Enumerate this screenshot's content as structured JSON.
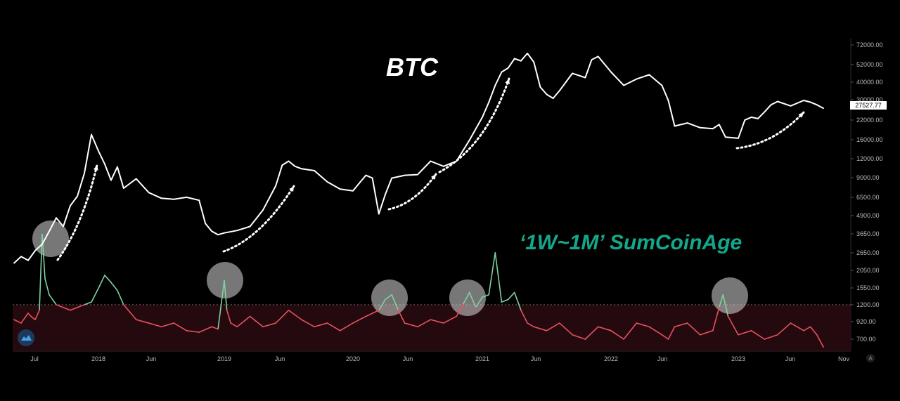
{
  "chart_data": {
    "type": "line",
    "title": "BTC",
    "subtitle": "‘1W~1M’ SumCoinAge",
    "price_label": "27527.77",
    "threshold": 1200,
    "x_ticks": [
      "Jul",
      "2018",
      "Jun",
      "2019",
      "Jun",
      "2020",
      "Jun",
      "2021",
      "Jun",
      "2022",
      "Jun",
      "2023",
      "Jun",
      "Nov"
    ],
    "y_ticks_top": [
      "72000.00",
      "52000.00",
      "40000.00",
      "30000.00",
      "22000.00",
      "16000.00",
      "12000.00",
      "9000.00",
      "6500.00",
      "4900.00",
      "3650.00",
      "2650.00",
      "2050.00",
      "1550.00",
      "1200.00",
      "920.00",
      "700.00"
    ],
    "corner_label": "A",
    "colors": {
      "price": "#ffffff",
      "above": "#7fd1a0",
      "below": "#e8505f",
      "subtitle": "#14a88a",
      "arrow": "#ffffff",
      "circle": "#d9d9d9"
    },
    "series": [
      {
        "name": "BTC",
        "x": [
          2017.4,
          2017.45,
          2017.5,
          2017.55,
          2017.6,
          2017.65,
          2017.7,
          2017.75,
          2017.8,
          2017.85,
          2017.9,
          2017.95,
          2018.0,
          2018.05,
          2018.1,
          2018.15,
          2018.2,
          2018.3,
          2018.4,
          2018.5,
          2018.6,
          2018.7,
          2018.8,
          2018.85,
          2018.9,
          2018.95,
          2019.0,
          2019.1,
          2019.2,
          2019.3,
          2019.4,
          2019.45,
          2019.5,
          2019.55,
          2019.6,
          2019.7,
          2019.8,
          2019.9,
          2020.0,
          2020.1,
          2020.15,
          2020.2,
          2020.25,
          2020.3,
          2020.4,
          2020.5,
          2020.6,
          2020.7,
          2020.8,
          2020.9,
          2021.0,
          2021.05,
          2021.1,
          2021.15,
          2021.2,
          2021.25,
          2021.3,
          2021.35,
          2021.4,
          2021.45,
          2021.5,
          2021.55,
          2021.6,
          2021.7,
          2021.8,
          2021.85,
          2021.9,
          2022.0,
          2022.1,
          2022.2,
          2022.3,
          2022.4,
          2022.45,
          2022.5,
          2022.6,
          2022.7,
          2022.8,
          2022.85,
          2022.9,
          2023.0,
          2023.05,
          2023.1,
          2023.15,
          2023.2,
          2023.25,
          2023.3,
          2023.4,
          2023.5,
          2023.55,
          2023.6,
          2023.65
        ],
        "values": [
          2300,
          2550,
          2400,
          2800,
          3100,
          3800,
          4700,
          4100,
          5700,
          6600,
          9500,
          17500,
          13500,
          11000,
          8500,
          10500,
          7500,
          8700,
          7000,
          6400,
          6300,
          6500,
          6200,
          4300,
          3800,
          3600,
          3700,
          3850,
          4100,
          5300,
          7800,
          10800,
          11500,
          10600,
          10200,
          9900,
          8300,
          7400,
          7200,
          9200,
          8800,
          5000,
          6800,
          8800,
          9200,
          9300,
          11500,
          10600,
          11500,
          16000,
          23000,
          29000,
          38000,
          47000,
          50000,
          58000,
          56000,
          63000,
          55000,
          37000,
          33000,
          31000,
          35000,
          46000,
          43000,
          57000,
          60000,
          47000,
          38000,
          42000,
          45000,
          38000,
          30000,
          20000,
          21000,
          19500,
          19200,
          20500,
          16800,
          16500,
          22000,
          23000,
          22500,
          25000,
          28000,
          29500,
          27500,
          30000,
          29200,
          28000,
          26500
        ]
      },
      {
        "name": "‘1W~1M’ SumCoinAge",
        "x": [
          2017.4,
          2017.45,
          2017.5,
          2017.52,
          2017.55,
          2017.58,
          2017.6,
          2017.62,
          2017.65,
          2017.7,
          2017.8,
          2017.85,
          2017.9,
          2017.95,
          2018.0,
          2018.05,
          2018.1,
          2018.15,
          2018.2,
          2018.3,
          2018.4,
          2018.5,
          2018.6,
          2018.7,
          2018.8,
          2018.9,
          2018.95,
          2019.0,
          2019.02,
          2019.05,
          2019.1,
          2019.2,
          2019.3,
          2019.4,
          2019.5,
          2019.6,
          2019.7,
          2019.8,
          2019.9,
          2020.0,
          2020.1,
          2020.2,
          2020.25,
          2020.3,
          2020.35,
          2020.4,
          2020.5,
          2020.6,
          2020.7,
          2020.8,
          2020.85,
          2020.9,
          2020.95,
          2021.0,
          2021.05,
          2021.1,
          2021.15,
          2021.2,
          2021.25,
          2021.3,
          2021.35,
          2021.4,
          2021.5,
          2021.6,
          2021.7,
          2021.8,
          2021.9,
          2022.0,
          2022.1,
          2022.2,
          2022.3,
          2022.4,
          2022.45,
          2022.5,
          2022.6,
          2022.7,
          2022.8,
          2022.85,
          2022.88,
          2022.92,
          2023.0,
          2023.1,
          2023.2,
          2023.3,
          2023.4,
          2023.5,
          2023.55,
          2023.6,
          2023.65
        ],
        "values": [
          950,
          900,
          1050,
          1000,
          950,
          1100,
          3600,
          1800,
          1400,
          1200,
          1100,
          1150,
          1200,
          1250,
          1550,
          1900,
          1700,
          1500,
          1200,
          950,
          900,
          850,
          900,
          800,
          780,
          850,
          820,
          1750,
          1100,
          900,
          850,
          1000,
          850,
          900,
          1100,
          950,
          850,
          900,
          800,
          900,
          1000,
          1100,
          1300,
          1400,
          1100,
          900,
          850,
          950,
          900,
          1000,
          1200,
          1450,
          1150,
          1350,
          1400,
          2700,
          1250,
          1300,
          1450,
          1100,
          900,
          850,
          800,
          900,
          750,
          700,
          850,
          800,
          700,
          900,
          850,
          750,
          700,
          850,
          900,
          750,
          800,
          1150,
          1400,
          1000,
          750,
          800,
          700,
          750,
          900,
          800,
          850,
          750,
          620
        ]
      }
    ]
  }
}
